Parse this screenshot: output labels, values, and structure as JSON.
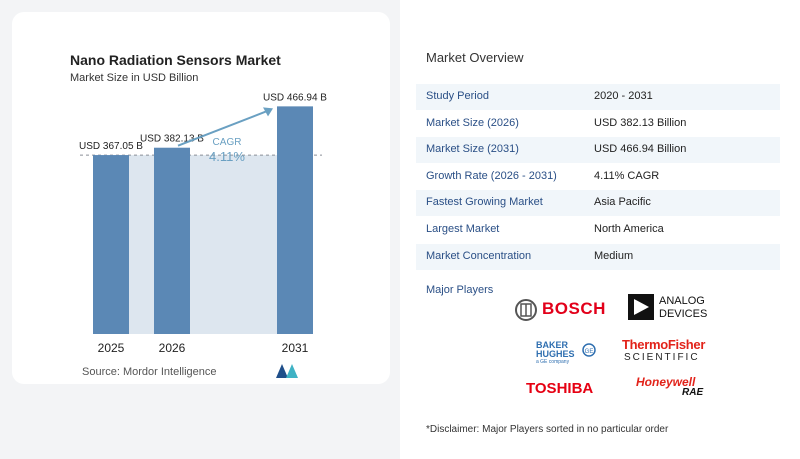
{
  "chart_data": {
    "type": "bar",
    "title": "Nano Radiation Sensors Market",
    "subtitle": "Market Size in USD Billion",
    "categories": [
      "2025",
      "2026",
      "2031"
    ],
    "values": [
      367.05,
      382.13,
      466.94
    ],
    "data_labels": [
      "USD 367.05 B",
      "USD 382.13 B",
      "USD 466.94 B"
    ],
    "cagr_label": "CAGR",
    "cagr_value": "4.11%",
    "ylim": [
      0,
      480
    ],
    "bar_color": "#5b88b5",
    "bg_band_color": "#dde6ef",
    "grid": false
  },
  "source": "Source:  Mordor Intelligence",
  "overview": {
    "title": "Market Overview",
    "rows": [
      {
        "key": "Study Period",
        "value": "2020 - 2031"
      },
      {
        "key": "Market Size (2026)",
        "value": "USD 382.13 Billion"
      },
      {
        "key": "Market Size (2031)",
        "value": "USD 466.94 Billion"
      },
      {
        "key": "Growth Rate (2026 - 2031)",
        "value": "4.11% CAGR"
      },
      {
        "key": "Fastest Growing Market",
        "value": "Asia Pacific"
      },
      {
        "key": "Largest Market",
        "value": "North America"
      },
      {
        "key": "Market Concentration",
        "value": "Medium"
      }
    ]
  },
  "players": {
    "label": "Major Players",
    "bosch": "BOSCH",
    "analog_line1": "ANALOG",
    "analog_line2": "DEVICES",
    "baker_line1": "BAKER",
    "baker_line2": "HUGHES",
    "baker_sub": "a GE company",
    "thermo_line1": "ThermoFisher",
    "thermo_line2": "SCIENTIFIC",
    "toshiba": "TOSHIBA",
    "honeywell": "Honeywell",
    "rae": "RAE"
  },
  "disclaimer": "*Disclaimer: Major Players sorted in no particular order"
}
